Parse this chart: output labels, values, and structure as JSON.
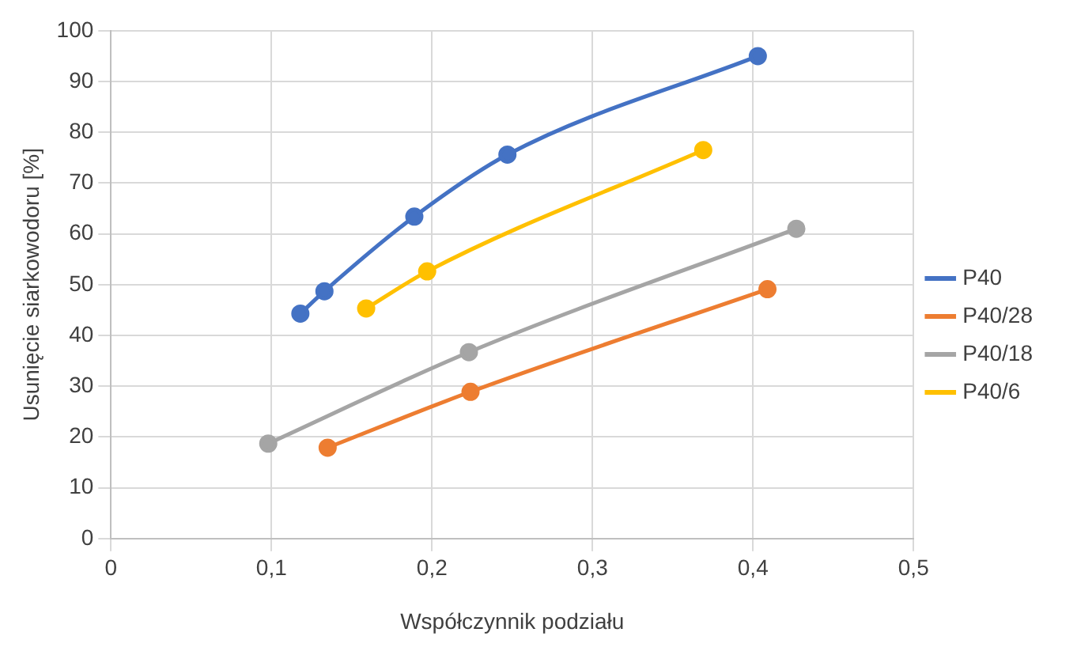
{
  "chart_data": {
    "type": "line",
    "xlabel": "Współczynnik podziału",
    "ylabel": "Usunięcie siarkowodoru [%]",
    "xlim": [
      0,
      0.5
    ],
    "xticks": [
      {
        "value": 0,
        "label": "0"
      },
      {
        "value": 0.1,
        "label": "0,1"
      },
      {
        "value": 0.2,
        "label": "0,2"
      },
      {
        "value": 0.3,
        "label": "0,3"
      },
      {
        "value": 0.4,
        "label": "0,4"
      },
      {
        "value": 0.5,
        "label": "0,5"
      }
    ],
    "ylim": [
      0,
      100
    ],
    "yticks": [
      0,
      10,
      20,
      30,
      40,
      50,
      60,
      70,
      80,
      90,
      100
    ],
    "grid": true,
    "legend": "right",
    "marker": "circle",
    "line_style": "solid",
    "series": [
      {
        "name": "P40",
        "color": "#4472c4",
        "x": [
          0.118,
          0.133,
          0.189,
          0.247,
          0.403
        ],
        "values": [
          44.3,
          48.7,
          63.4,
          75.6,
          95.0
        ]
      },
      {
        "name": "P40/28",
        "color": "#ed7d31",
        "x": [
          0.135,
          0.224,
          0.409
        ],
        "values": [
          17.9,
          28.9,
          49.1
        ]
      },
      {
        "name": "P40/18",
        "color": "#a5a5a5",
        "x": [
          0.098,
          0.223,
          0.427
        ],
        "values": [
          18.7,
          36.7,
          61.0
        ]
      },
      {
        "name": "P40/6",
        "color": "#ffc000",
        "x": [
          0.159,
          0.197,
          0.369
        ],
        "values": [
          45.3,
          52.6,
          76.5
        ]
      }
    ]
  }
}
